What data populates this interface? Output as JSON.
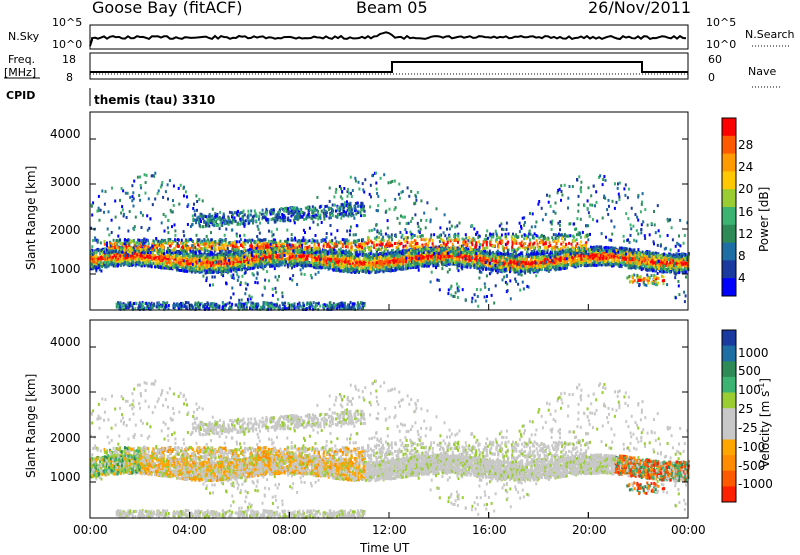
{
  "header": {
    "station": "Goose Bay (fitACF)",
    "beam": "Beam 05",
    "date": "26/Nov/2011"
  },
  "params": {
    "nsky_label": "N.Sky",
    "nsky_ticks": [
      "10^5",
      "10^0"
    ],
    "nsearch_label": "N.Search",
    "nsearch_ticks": [
      "10^5",
      "10^0"
    ],
    "freq_label_1": "Freq.",
    "freq_label_2": "[MHz]",
    "freq_ticks": [
      "18",
      "8"
    ],
    "nave_label": "Nave",
    "nave_ticks": [
      "60",
      "0"
    ],
    "cpid_label": "CPID",
    "cpid_value": "themis (tau) 3310"
  },
  "colorbars": {
    "power": {
      "title": "Power [dB]",
      "ticks": [
        "28",
        "24",
        "20",
        "16",
        "12",
        "8",
        "4"
      ],
      "colors": [
        "#ff0000",
        "#ff5a00",
        "#ff9a00",
        "#ffc800",
        "#9acd32",
        "#3cb371",
        "#2e8b57",
        "#1c6ea4",
        "#1a3aa0",
        "#0000ff"
      ]
    },
    "velocity": {
      "title": "Velocity [m s",
      "title_sup": "-1",
      "title_end": "]",
      "ticks": [
        "1000",
        "500",
        "100",
        "25",
        "-25",
        "-100",
        "-500",
        "-1000"
      ],
      "colors": [
        "#1a3aa0",
        "#1c6ea4",
        "#2e8b57",
        "#3cb371",
        "#9acd32",
        "#c8c8c8",
        "#c8c8c8",
        "#ffa500",
        "#ff8c00",
        "#ff5a00",
        "#ff2000"
      ]
    }
  },
  "chart_data": [
    {
      "type": "heatmap",
      "name": "power",
      "ylabel": "Slant Range [km]",
      "ylim": [
        200,
        4600
      ],
      "yticks": [
        "4000",
        "3000",
        "2000",
        "1000"
      ],
      "xlim": [
        "00:00",
        "24:00"
      ],
      "xticks": [
        "00:00",
        "04:00",
        "08:00",
        "12:00",
        "16:00",
        "20:00",
        "00:00"
      ],
      "bands": [
        {
          "t_start": 0,
          "t_end": 24,
          "range_center": 1300,
          "range_width": 300,
          "level": "high"
        },
        {
          "t_start": 5,
          "t_end": 11,
          "range_center": 2300,
          "range_width": 250,
          "level": "medium"
        },
        {
          "t_start": 0,
          "t_end": 11,
          "range_center": 300,
          "range_width": 200,
          "level": "low"
        }
      ]
    },
    {
      "type": "heatmap",
      "name": "velocity",
      "ylabel": "Slant Range [km]",
      "ylim": [
        200,
        4600
      ],
      "yticks": [
        "4000",
        "3000",
        "2000",
        "1000"
      ],
      "xlim": [
        "00:00",
        "24:00"
      ],
      "xticks": [
        "00:00",
        "04:00",
        "08:00",
        "12:00",
        "16:00",
        "20:00",
        "00:00"
      ],
      "xlabel": "Time UT"
    }
  ]
}
